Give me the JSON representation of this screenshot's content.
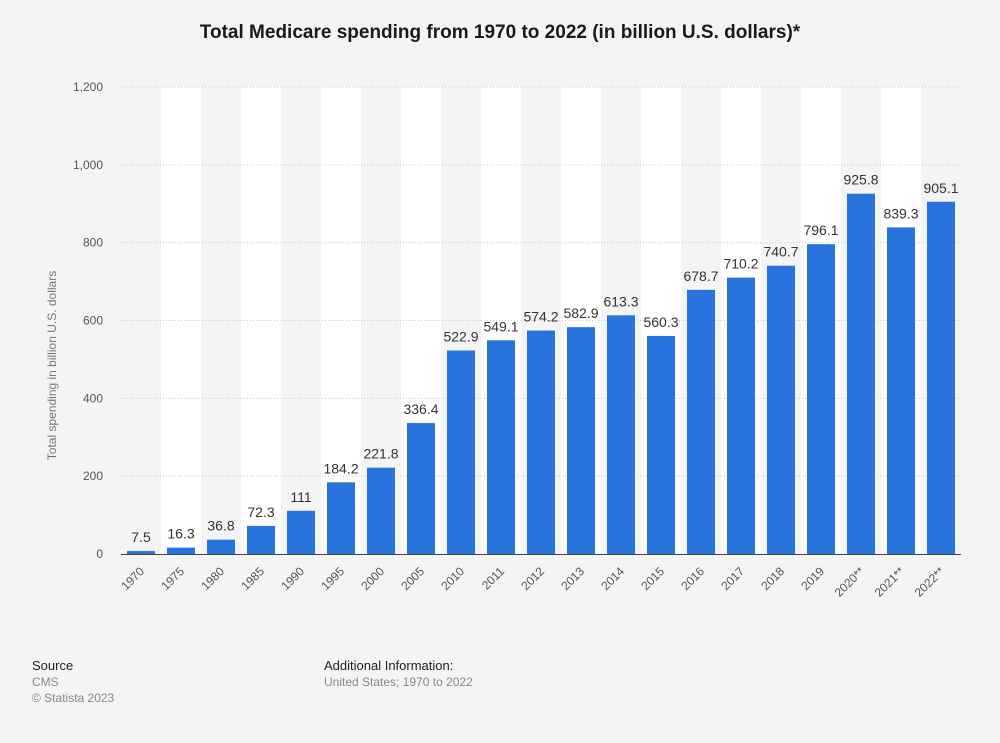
{
  "chart_data": {
    "type": "bar",
    "title": "Total Medicare spending from 1970 to 2022 (in billion U.S. dollars)*",
    "ylabel": "Total spending in billion U.S. dollars",
    "xlabel": "",
    "categories": [
      "1970",
      "1975",
      "1980",
      "1985",
      "1990",
      "1995",
      "2000",
      "2005",
      "2010",
      "2011",
      "2012",
      "2013",
      "2014",
      "2015",
      "2016",
      "2017",
      "2018",
      "2019",
      "2020**",
      "2021**",
      "2022**"
    ],
    "values": [
      7.5,
      16.3,
      36.8,
      72.3,
      111,
      184.2,
      221.8,
      336.4,
      522.9,
      549.1,
      574.2,
      582.9,
      613.3,
      560.3,
      678.7,
      710.2,
      740.7,
      796.1,
      925.8,
      839.3,
      905.1
    ],
    "data_labels": [
      "7.5",
      "16.3",
      "36.8",
      "72.3",
      "111",
      "184.2",
      "221.8",
      "336.4",
      "522.9",
      "549.1",
      "574.2",
      "582.9",
      "613.3",
      "560.3",
      "678.7",
      "710.2",
      "740.7",
      "796.1",
      "925.8",
      "839.3",
      "905.1"
    ],
    "ylim": [
      0,
      1200
    ],
    "yticks": [
      0,
      200,
      400,
      600,
      800,
      1000,
      1200
    ],
    "ytick_labels": [
      "0",
      "200",
      "400",
      "600",
      "800",
      "1,000",
      "1,200"
    ],
    "grid": true,
    "legend": "none",
    "bar_color": "#2874dc"
  },
  "footer": {
    "source_heading": "Source",
    "source_name": "CMS",
    "copyright": "© Statista 2023",
    "additional_heading": "Additional Information:",
    "additional_text": "United States; 1970 to 2022"
  }
}
